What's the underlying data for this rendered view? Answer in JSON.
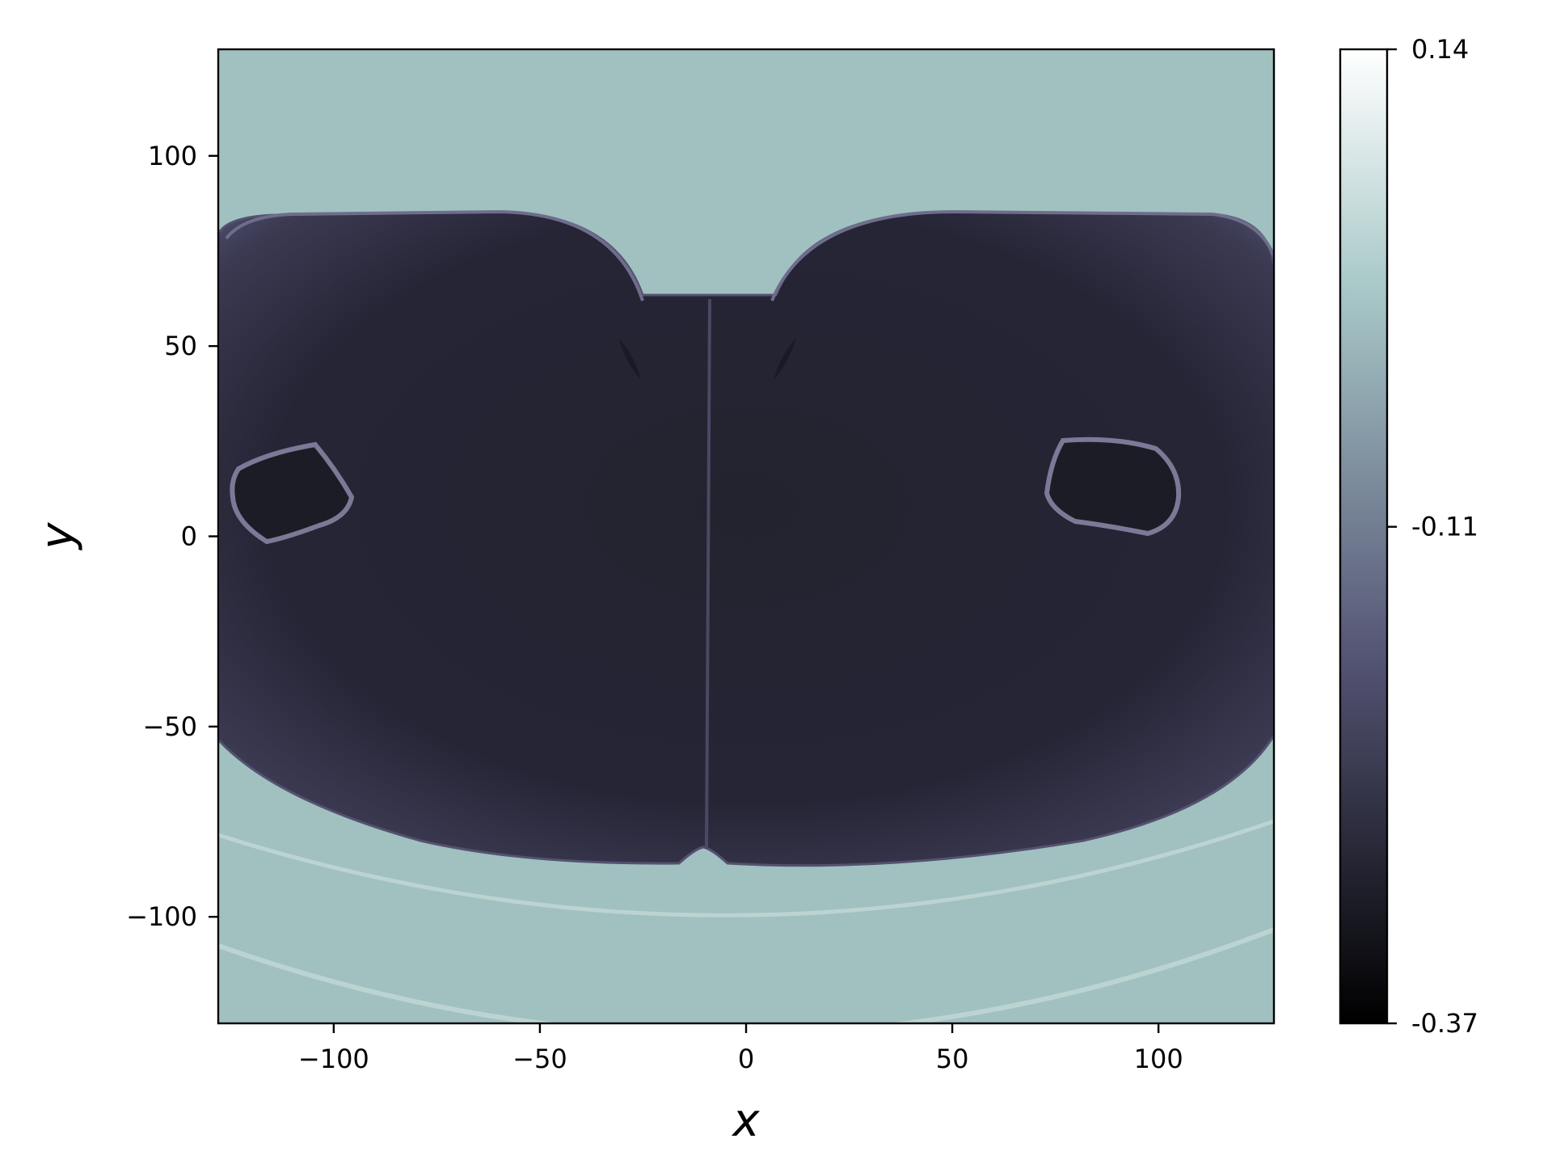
{
  "chart_data": {
    "type": "heatmap",
    "title": "",
    "xlabel": "x",
    "ylabel": "y",
    "xlim": [
      -128,
      128
    ],
    "ylim": [
      -128,
      128
    ],
    "x_ticks": [
      {
        "value": -100,
        "label": "−100"
      },
      {
        "value": -50,
        "label": "−50"
      },
      {
        "value": 0,
        "label": "0"
      },
      {
        "value": 50,
        "label": "50"
      },
      {
        "value": 100,
        "label": "100"
      }
    ],
    "y_ticks": [
      {
        "value": 100,
        "label": "100"
      },
      {
        "value": 50,
        "label": "50"
      },
      {
        "value": 0,
        "label": "0"
      },
      {
        "value": -50,
        "label": "−50"
      },
      {
        "value": -100,
        "label": "−100"
      }
    ],
    "colorbar": {
      "colormap": "bone",
      "min": -0.37,
      "max": 0.14,
      "ticks": [
        {
          "value": 0.14,
          "label": "0.14"
        },
        {
          "value": -0.11,
          "label": "-0.11"
        },
        {
          "value": -0.37,
          "label": "-0.37"
        }
      ]
    },
    "regions": {
      "background_value": 0.0,
      "body_value": -0.3,
      "ring_value": -0.02,
      "crest_value": 0.05
    },
    "grid": false
  },
  "colors": {
    "background": "#a0c1c0",
    "body_edge": "#545270",
    "body_core": "#1e1e2a",
    "ring": "#bcd4d1",
    "frame": "#000000"
  }
}
